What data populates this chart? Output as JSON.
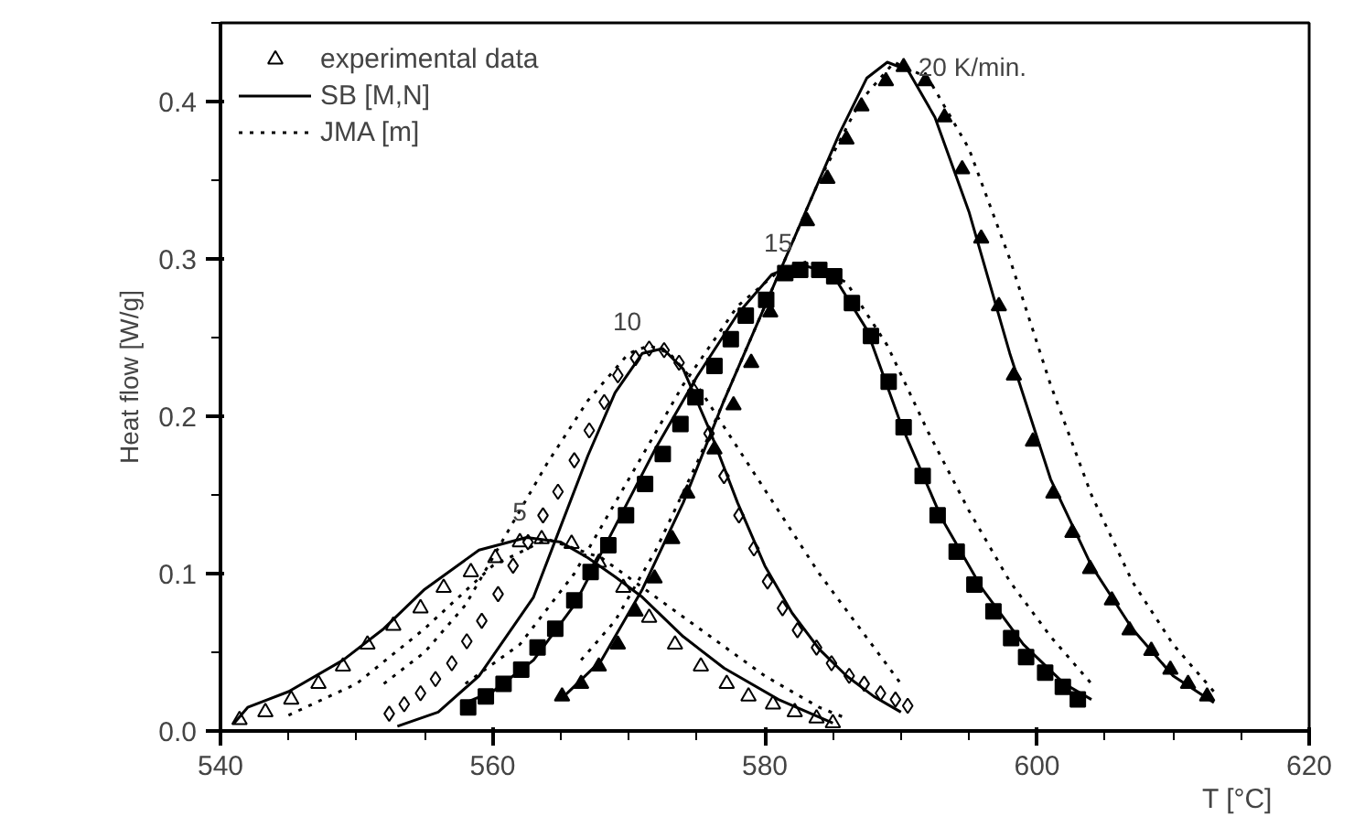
{
  "chart_data": {
    "type": "scatter",
    "xlabel": "T [°C]",
    "ylabel": "Heat flow [W/g]",
    "xlim": [
      540,
      620
    ],
    "ylim": [
      0,
      0.45
    ],
    "xticks": [
      540,
      560,
      580,
      600,
      620
    ],
    "yticks": [
      {
        "value": 0,
        "label": "0.0"
      },
      {
        "value": 0.1,
        "label": "0.1"
      },
      {
        "value": 0.2,
        "label": "0.2"
      },
      {
        "value": 0.3,
        "label": "0.3"
      },
      {
        "value": 0.4,
        "label": "0.4"
      }
    ],
    "grid": false,
    "legend": "top left",
    "annotations": [
      "5",
      "10",
      "15",
      "20 K/min."
    ],
    "series": [
      {
        "name": "experimental data",
        "marker": "triangle",
        "color": "#ffffff",
        "x": [
          541.4,
          543.3,
          545.2,
          547.2,
          549.0,
          550.8,
          552.7,
          554.7,
          556.4,
          558.4,
          560.2,
          562.0,
          563.6,
          565.8,
          567.8,
          569.6,
          571.5,
          573.4,
          575.3,
          577.2,
          578.8,
          580.6,
          582.2,
          583.8,
          585.0
        ],
        "values": [
          0.007,
          0.012,
          0.02,
          0.03,
          0.041,
          0.055,
          0.067,
          0.078,
          0.091,
          0.101,
          0.11,
          0.12,
          0.122,
          0.119,
          0.107,
          0.091,
          0.072,
          0.055,
          0.041,
          0.03,
          0.022,
          0.017,
          0.012,
          0.008,
          0.005
        ]
      },
      {
        "marker": "diamond",
        "color": "#ffffff",
        "x": [
          552.4,
          553.5,
          554.7,
          555.8,
          557.0,
          558.1,
          559.2,
          560.4,
          561.5,
          562.6,
          563.7,
          564.8,
          566.0,
          567.1,
          568.2,
          569.2,
          570.5,
          571.5,
          572.6,
          573.7,
          574.8,
          575.9,
          577.0,
          578.1,
          579.2,
          580.2,
          581.3,
          582.4,
          583.8,
          584.9,
          586.2,
          587.3,
          588.5,
          589.6,
          590.5
        ],
        "values": [
          0.011,
          0.017,
          0.024,
          0.033,
          0.043,
          0.057,
          0.07,
          0.087,
          0.105,
          0.12,
          0.137,
          0.152,
          0.172,
          0.191,
          0.209,
          0.226,
          0.237,
          0.243,
          0.242,
          0.234,
          0.216,
          0.189,
          0.162,
          0.137,
          0.116,
          0.095,
          0.078,
          0.064,
          0.053,
          0.043,
          0.035,
          0.03,
          0.024,
          0.02,
          0.016
        ]
      },
      {
        "marker": "square",
        "color": "#000000",
        "x": [
          558.2,
          559.5,
          560.8,
          562.1,
          563.3,
          564.6,
          566.0,
          567.2,
          568.5,
          569.8,
          571.2,
          572.5,
          573.8,
          574.9,
          576.3,
          577.5,
          578.6,
          580.1,
          581.5,
          582.6,
          584.0,
          585.1,
          586.4,
          587.8,
          589.1,
          590.2,
          591.6,
          592.7,
          594.1,
          595.4,
          596.8,
          598.1,
          599.2,
          600.6,
          601.9,
          603.0
        ],
        "values": [
          0.015,
          0.022,
          0.03,
          0.039,
          0.053,
          0.065,
          0.083,
          0.101,
          0.118,
          0.137,
          0.157,
          0.176,
          0.195,
          0.212,
          0.232,
          0.249,
          0.264,
          0.274,
          0.291,
          0.293,
          0.293,
          0.289,
          0.272,
          0.251,
          0.222,
          0.193,
          0.162,
          0.137,
          0.114,
          0.093,
          0.076,
          0.059,
          0.047,
          0.037,
          0.028,
          0.02
        ]
      },
      {
        "marker": "triangle",
        "color": "#000000",
        "x": [
          565.1,
          566.5,
          567.8,
          569.2,
          570.5,
          571.9,
          573.2,
          574.3,
          576.3,
          577.7,
          579.0,
          580.4,
          583.1,
          584.6,
          586.0,
          587.1,
          588.9,
          590.2,
          591.8,
          593.2,
          594.5,
          595.9,
          597.2,
          598.3,
          599.7,
          601.2,
          602.6,
          603.9,
          605.5,
          606.8,
          608.4,
          609.8,
          611.1,
          612.5
        ],
        "values": [
          0.022,
          0.03,
          0.041,
          0.055,
          0.076,
          0.097,
          0.122,
          0.151,
          0.179,
          0.207,
          0.234,
          0.266,
          0.324,
          0.351,
          0.376,
          0.397,
          0.413,
          0.422,
          0.413,
          0.39,
          0.357,
          0.313,
          0.27,
          0.226,
          0.184,
          0.151,
          0.126,
          0.103,
          0.083,
          0.064,
          0.051,
          0.039,
          0.03,
          0.022
        ]
      },
      {
        "name": "SB [M,N]",
        "type": "line",
        "line_style": "solid",
        "color": "#000000",
        "x": [
          541,
          542,
          545,
          549,
          552,
          555,
          559,
          562.5,
          565,
          567,
          569,
          571,
          574,
          577,
          581,
          585
        ],
        "values": [
          0.005,
          0.015,
          0.025,
          0.045,
          0.065,
          0.09,
          0.115,
          0.123,
          0.12,
          0.11,
          0.098,
          0.085,
          0.06,
          0.04,
          0.02,
          0.005
        ]
      },
      {
        "type": "line",
        "line_style": "solid",
        "color": "#000000",
        "x": [
          553,
          556,
          559,
          561,
          563,
          565,
          567,
          569,
          571,
          572.5,
          574,
          576,
          578,
          580,
          582,
          584,
          586,
          588,
          590
        ],
        "values": [
          0.003,
          0.012,
          0.035,
          0.06,
          0.085,
          0.13,
          0.175,
          0.215,
          0.24,
          0.243,
          0.23,
          0.19,
          0.145,
          0.105,
          0.075,
          0.052,
          0.035,
          0.022,
          0.012
        ]
      },
      {
        "type": "line",
        "line_style": "solid",
        "color": "#000000",
        "x": [
          558,
          560,
          563,
          566,
          569,
          572,
          575,
          578,
          580.5,
          582.5,
          585,
          587.5,
          590,
          593,
          596,
          599,
          602,
          604
        ],
        "values": [
          0.018,
          0.025,
          0.045,
          0.08,
          0.13,
          0.18,
          0.225,
          0.265,
          0.29,
          0.297,
          0.29,
          0.255,
          0.195,
          0.135,
          0.09,
          0.055,
          0.03,
          0.02
        ]
      },
      {
        "type": "line",
        "line_style": "solid",
        "color": "#000000",
        "x": [
          565,
          568,
          571,
          574,
          577,
          580,
          583,
          585.5,
          587.5,
          589,
          590.5,
          592.5,
          595,
          598,
          601,
          604,
          607,
          610,
          613
        ],
        "values": [
          0.02,
          0.045,
          0.09,
          0.145,
          0.21,
          0.27,
          0.33,
          0.38,
          0.415,
          0.425,
          0.42,
          0.39,
          0.33,
          0.24,
          0.16,
          0.105,
          0.065,
          0.035,
          0.018
        ]
      },
      {
        "name": "JMA [m]",
        "type": "line",
        "line_style": "dotted",
        "color": "#000000",
        "x": [
          545,
          550,
          555,
          560,
          564,
          568,
          572,
          576,
          580,
          584,
          586
        ],
        "values": [
          0.01,
          0.03,
          0.065,
          0.105,
          0.122,
          0.11,
          0.085,
          0.06,
          0.035,
          0.015,
          0.008
        ]
      },
      {
        "type": "line",
        "line_style": "dotted",
        "color": "#000000",
        "x": [
          552,
          555,
          558,
          561,
          564,
          567,
          570,
          571.5,
          573,
          575,
          578,
          581,
          584,
          587,
          590
        ],
        "values": [
          0.03,
          0.05,
          0.08,
          0.125,
          0.17,
          0.21,
          0.24,
          0.245,
          0.24,
          0.22,
          0.18,
          0.14,
          0.1,
          0.065,
          0.03
        ]
      },
      {
        "type": "line",
        "line_style": "dotted",
        "color": "#000000",
        "x": [
          558,
          562,
          566,
          570,
          574,
          578,
          581,
          583,
          586,
          589,
          592,
          595,
          598,
          601,
          604
        ],
        "values": [
          0.03,
          0.055,
          0.1,
          0.16,
          0.22,
          0.27,
          0.292,
          0.298,
          0.285,
          0.245,
          0.19,
          0.14,
          0.095,
          0.06,
          0.03
        ]
      },
      {
        "type": "line",
        "line_style": "dotted",
        "color": "#000000",
        "x": [
          566.5,
          569,
          572,
          575,
          578,
          581,
          584,
          587,
          589.5,
          592,
          595,
          598,
          601,
          604,
          607,
          610,
          613
        ],
        "values": [
          0.045,
          0.07,
          0.115,
          0.17,
          0.23,
          0.29,
          0.35,
          0.4,
          0.425,
          0.415,
          0.37,
          0.3,
          0.22,
          0.15,
          0.095,
          0.055,
          0.025
        ]
      }
    ]
  }
}
